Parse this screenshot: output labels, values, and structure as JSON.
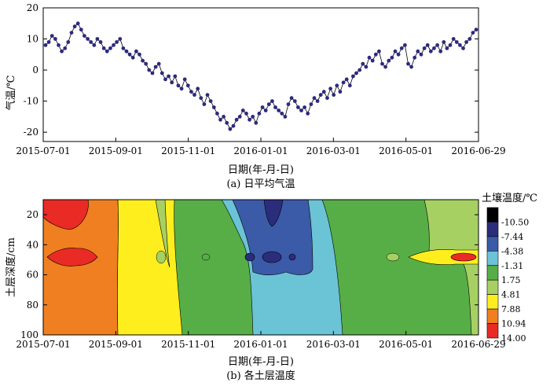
{
  "chart_data": [
    {
      "type": "scatter",
      "panel_caption": "(a) 日平均气温",
      "xlabel": "日期(年-月-日)",
      "ylabel": "气温/℃",
      "x_ticks": [
        "2015-07-01",
        "2015-09-01",
        "2015-11-01",
        "2016-01-01",
        "2016-03-01",
        "2016-05-01",
        "2016-06-29"
      ],
      "ylim": [
        -23,
        20
      ],
      "y_ticks": [
        "20",
        "10",
        "0",
        "-10",
        "-20"
      ],
      "marker_color": "#2c2a7e",
      "line_color": "#000000",
      "series": [
        {
          "values": [
            8,
            9,
            11,
            10,
            8,
            6,
            7,
            9,
            12,
            14,
            15,
            13,
            11,
            10,
            9,
            8,
            10,
            9,
            7,
            6,
            7,
            8,
            9,
            10,
            7,
            6,
            5,
            4,
            6,
            5,
            3,
            2,
            0,
            -1,
            1,
            2,
            -1,
            -3,
            -2,
            -4,
            -2,
            -5,
            -6,
            -3,
            -5,
            -7,
            -8,
            -6,
            -9,
            -11,
            -8,
            -10,
            -12,
            -14,
            -16,
            -15,
            -17,
            -19,
            -18,
            -16,
            -15,
            -13,
            -14,
            -16,
            -15,
            -17,
            -14,
            -12,
            -13,
            -11,
            -10,
            -12,
            -13,
            -14,
            -15,
            -11,
            -9,
            -10,
            -12,
            -13,
            -12,
            -14,
            -11,
            -9,
            -10,
            -8,
            -7,
            -9,
            -6,
            -8,
            -5,
            -7,
            -4,
            -3,
            -5,
            -2,
            -1,
            0,
            2,
            1,
            4,
            3,
            5,
            6,
            2,
            1,
            3,
            4,
            6,
            5,
            7,
            8,
            2,
            1,
            4,
            6,
            5,
            7,
            8,
            6,
            7,
            8,
            6,
            9,
            7,
            8,
            10,
            9,
            8,
            7,
            9,
            10,
            12,
            13
          ]
        }
      ]
    },
    {
      "type": "heatmap",
      "panel_caption": "(b) 各土层温度",
      "xlabel": "日期(年-月-日)",
      "ylabel": "土层深度/cm",
      "x_ticks": [
        "2015-07-01",
        "2015-09-01",
        "2015-11-01",
        "2016-01-01",
        "2016-03-01",
        "2016-05-01",
        "2016-06-29"
      ],
      "y_ticks": [
        "20",
        "40",
        "60",
        "80",
        "100"
      ],
      "ylim": [
        100,
        10
      ],
      "colorbar_title": "土壤温度/℃",
      "colorbar_levels": [
        "-10.50",
        "-7.44",
        "-4.38",
        "-1.31",
        "1.75",
        "4.81",
        "7.88",
        "10.94",
        "14.00"
      ],
      "colorbar_colors": [
        "#000000",
        "#2b2d7c",
        "#3b5ba8",
        "#6bc3d6",
        "#57ae47",
        "#a7d063",
        "#ffee1e",
        "#f07f21",
        "#ea2a24"
      ]
    }
  ]
}
